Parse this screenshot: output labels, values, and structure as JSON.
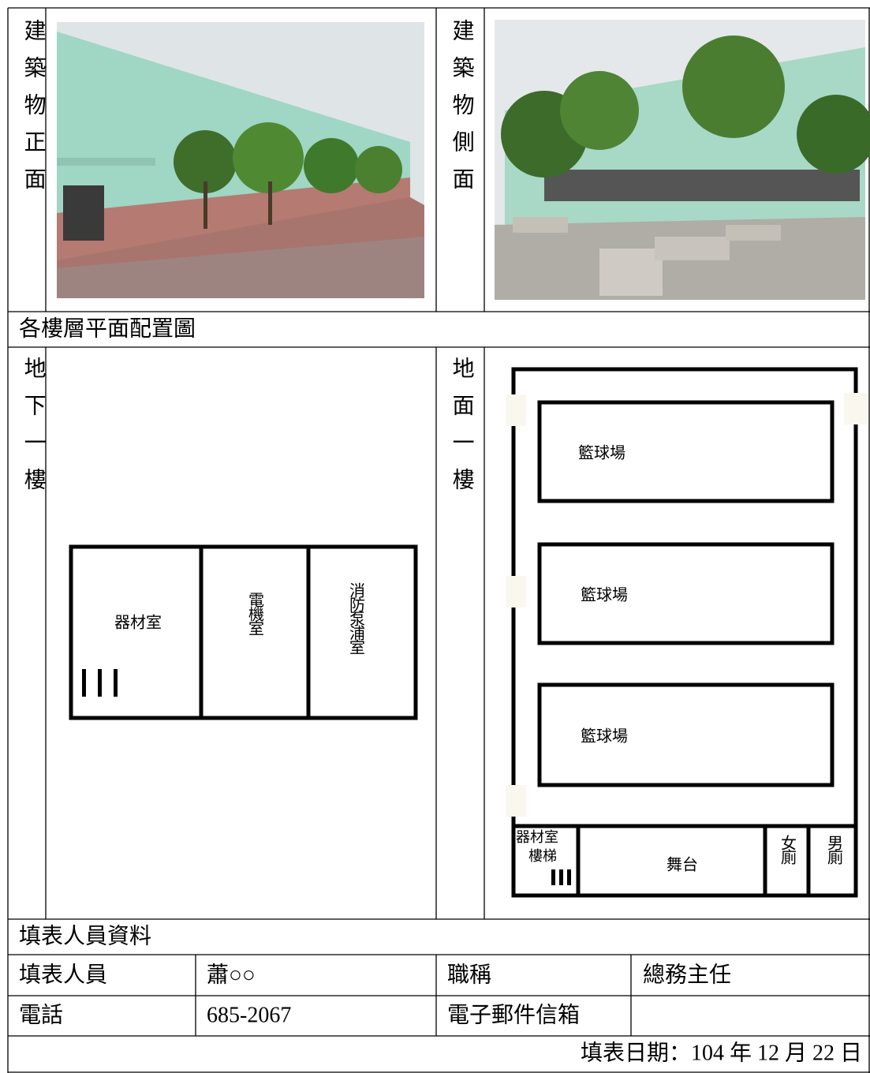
{
  "photos": {
    "front": {
      "label": "建築物正面"
    },
    "side": {
      "label": "建築物側面"
    }
  },
  "floor_plans": {
    "title": "各樓層平面配置圖",
    "basement": {
      "label": "地下一樓",
      "rooms": [
        "器材室",
        "電機室",
        "消防泵浦室"
      ]
    },
    "ground": {
      "label": "地面一樓",
      "rooms": [
        "籃球場",
        "籃球場",
        "籃球場",
        "器材室",
        "樓梯",
        "舞台",
        "女廁",
        "男廁"
      ]
    }
  },
  "contact": {
    "title": "填表人員資料",
    "fields": [
      {
        "label": "填表人員",
        "value": "蕭○○"
      },
      {
        "label": "職稱",
        "value": "總務主任"
      },
      {
        "label": "電話",
        "value": "685-2067"
      },
      {
        "label": "電子郵件信箱"
      }
    ]
  },
  "date": "填表日期：104 年 12 月 22 日"
}
